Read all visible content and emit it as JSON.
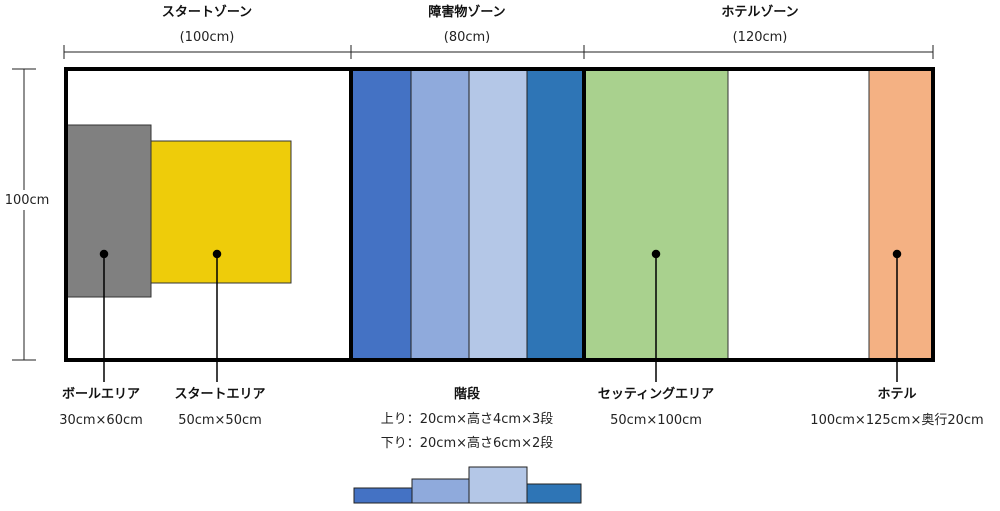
{
  "zones": [
    {
      "name": "スタートゾーン",
      "size": "(100cm)"
    },
    {
      "name": "障害物ゾーン",
      "size": "(80cm)"
    },
    {
      "name": "ホテルゾーン",
      "size": "(120cm)"
    }
  ],
  "height_label": "100cm",
  "areas": {
    "ball": {
      "name": "ボールエリア",
      "size": "30cm×60cm",
      "color": "#808080"
    },
    "start": {
      "name": "スタートエリア",
      "size": "50cm×50cm",
      "color": "#eecc0a"
    },
    "stairs": {
      "name": "階段",
      "up": "上り：20cm×高さ4cm×3段",
      "down": "下り：20cm×高さ6cm×2段",
      "colors": [
        "#4472c4",
        "#8faadc",
        "#b4c7e7",
        "#2e75b6"
      ]
    },
    "setting": {
      "name": "セッティングエリア",
      "size": "50cm×100cm",
      "color": "#a9d18e"
    },
    "hotel": {
      "name": "ホテル",
      "size": "100cm×125cm×奥行20cm",
      "color": "#f4b183"
    }
  }
}
